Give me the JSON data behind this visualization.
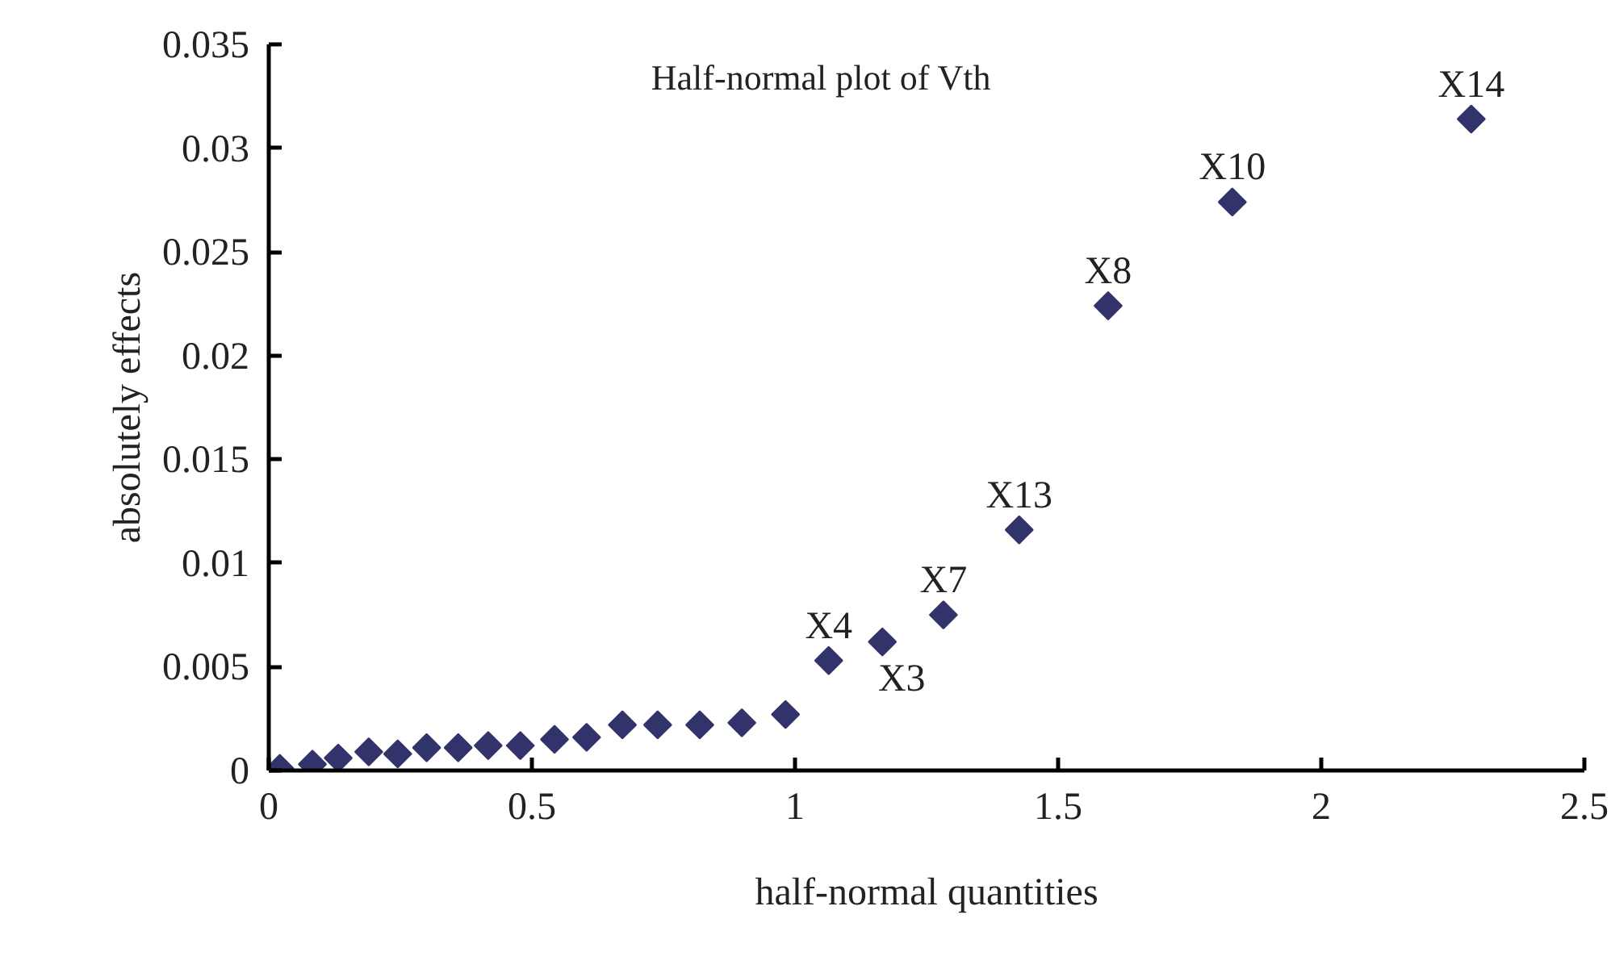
{
  "chart_data": {
    "type": "scatter",
    "title": "Half-normal plot of Vth",
    "xlabel": "half-normal quantities",
    "ylabel": "absolutely effects",
    "x": [
      0.021,
      0.083,
      0.132,
      0.19,
      0.245,
      0.3,
      0.36,
      0.417,
      0.478,
      0.543,
      0.604,
      0.672,
      0.739,
      0.819,
      0.899,
      0.982,
      1.064,
      1.166,
      1.282,
      1.426,
      1.595,
      1.831,
      2.285
    ],
    "values": [
      0.0001,
      0.0003,
      0.0006,
      0.0009,
      0.0008,
      0.0011,
      0.0011,
      0.0012,
      0.0012,
      0.0015,
      0.0016,
      0.0022,
      0.0022,
      0.0022,
      0.0023,
      0.0027,
      0.0053,
      0.0062,
      0.0075,
      0.0116,
      0.0224,
      0.0274,
      0.0314
    ],
    "color": "#33336b",
    "marker": "diamond",
    "grid": false,
    "xlim": [
      0,
      2.5
    ],
    "xticks": [
      0,
      0.5,
      1,
      1.5,
      2,
      2.5
    ],
    "ylim": [
      0,
      0.035
    ],
    "yticks": [
      0,
      0.005,
      0.01,
      0.015,
      0.02,
      0.025,
      0.03,
      0.035
    ],
    "annotations": [
      {
        "text": "X4",
        "x": 1.064,
        "y": 0.0053
      },
      {
        "text": "X3",
        "x": 1.166,
        "y": 0.0062
      },
      {
        "text": "X7",
        "x": 1.282,
        "y": 0.0075
      },
      {
        "text": "X13",
        "x": 1.426,
        "y": 0.0116
      },
      {
        "text": "X8",
        "x": 1.595,
        "y": 0.0224
      },
      {
        "text": "X10",
        "x": 1.831,
        "y": 0.0274
      },
      {
        "text": "X14",
        "x": 2.285,
        "y": 0.0314
      }
    ]
  }
}
